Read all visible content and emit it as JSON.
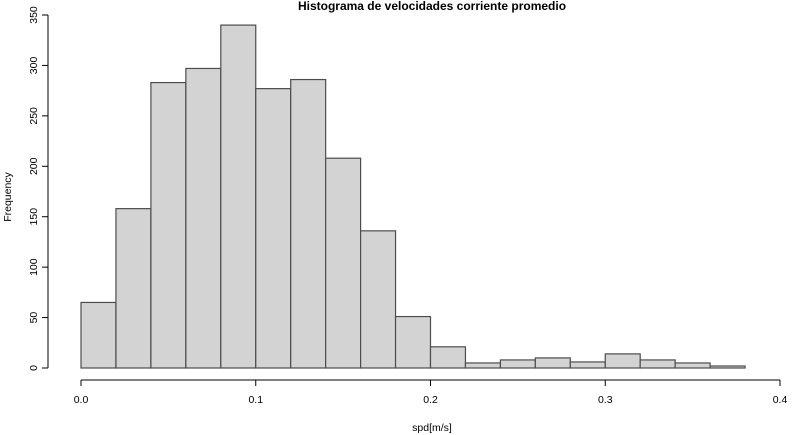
{
  "chart_data": {
    "type": "bar",
    "title": "Histograma de velocidades corriente promedio",
    "xlabel": "spd[m/s]",
    "ylabel": "Frequency",
    "bins": [
      {
        "from": 0.0,
        "to": 0.02,
        "count": 65
      },
      {
        "from": 0.02,
        "to": 0.04,
        "count": 158
      },
      {
        "from": 0.04,
        "to": 0.06,
        "count": 283
      },
      {
        "from": 0.06,
        "to": 0.08,
        "count": 297
      },
      {
        "from": 0.08,
        "to": 0.1,
        "count": 340
      },
      {
        "from": 0.1,
        "to": 0.12,
        "count": 277
      },
      {
        "from": 0.12,
        "to": 0.14,
        "count": 286
      },
      {
        "from": 0.14,
        "to": 0.16,
        "count": 208
      },
      {
        "from": 0.16,
        "to": 0.18,
        "count": 136
      },
      {
        "from": 0.18,
        "to": 0.2,
        "count": 51
      },
      {
        "from": 0.2,
        "to": 0.22,
        "count": 21
      },
      {
        "from": 0.22,
        "to": 0.24,
        "count": 5
      },
      {
        "from": 0.24,
        "to": 0.26,
        "count": 8
      },
      {
        "from": 0.26,
        "to": 0.28,
        "count": 10
      },
      {
        "from": 0.28,
        "to": 0.3,
        "count": 6
      },
      {
        "from": 0.3,
        "to": 0.32,
        "count": 14
      },
      {
        "from": 0.32,
        "to": 0.34,
        "count": 8
      },
      {
        "from": 0.34,
        "to": 0.36,
        "count": 5
      },
      {
        "from": 0.36,
        "to": 0.38,
        "count": 2
      }
    ],
    "xlim": [
      0,
      0.4
    ],
    "ylim": [
      0,
      350
    ],
    "xticks": [
      {
        "value": 0.0,
        "label": "0.0"
      },
      {
        "value": 0.1,
        "label": "0.1"
      },
      {
        "value": 0.2,
        "label": "0.2"
      },
      {
        "value": 0.3,
        "label": "0.3"
      },
      {
        "value": 0.4,
        "label": "0.4"
      }
    ],
    "yticks": [
      {
        "value": 0,
        "label": "0"
      },
      {
        "value": 50,
        "label": "50"
      },
      {
        "value": 100,
        "label": "100"
      },
      {
        "value": 150,
        "label": "150"
      },
      {
        "value": 200,
        "label": "200"
      },
      {
        "value": 250,
        "label": "250"
      },
      {
        "value": 300,
        "label": "300"
      },
      {
        "value": 350,
        "label": "350"
      }
    ],
    "grid": false,
    "colors": {
      "bar_fill": "#d3d3d3",
      "bar_stroke": "#4d4d4d",
      "axis": "#000000"
    }
  }
}
